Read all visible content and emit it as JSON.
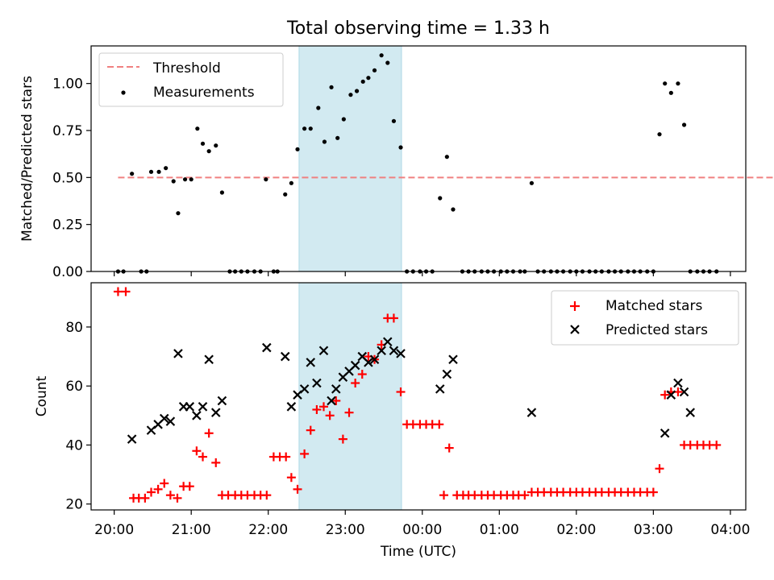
{
  "figure_title": "Total observing time = 1.33 h",
  "xlabel": "Time (UTC)",
  "chart_data": [
    {
      "type": "scatter",
      "panel": "top",
      "ylabel": "Matched/Predicted stars",
      "ylim": [
        0,
        1.2
      ],
      "yticks": [
        0,
        0.25,
        0.5,
        0.75,
        1.0
      ],
      "ytick_labels": [
        "0.00",
        "0.25",
        "0.50",
        "0.75",
        "1.00"
      ],
      "xlim": [
        "19:42",
        "04:12"
      ],
      "x_unit": "time of day (UTC), hours past 00:00 of the first night; values > 24 are after midnight",
      "xticks": [
        20,
        21,
        22,
        23,
        24,
        25,
        26,
        27,
        28
      ],
      "xtick_labels": [
        "20:00",
        "21:00",
        "22:00",
        "23:00",
        "00:00",
        "01:00",
        "02:00",
        "03:00",
        "04:00"
      ],
      "shaded_region": {
        "x_start": 22.4,
        "x_end": 23.73,
        "color": "#add8e6"
      },
      "legend": {
        "position": "upper left"
      },
      "threshold": {
        "name": "Threshold",
        "y": 0.5,
        "x_range": [
          20.05,
          28.85
        ],
        "color": "#f08080",
        "style": "dashed"
      },
      "series": [
        {
          "name": "Measurements",
          "color": "#000000",
          "marker": "dot",
          "x": [
            20.05,
            20.12,
            20.35,
            20.42,
            20.23,
            20.48,
            20.58,
            20.67,
            20.77,
            20.83,
            20.92,
            21.0,
            21.08,
            21.15,
            21.23,
            21.32,
            21.4,
            21.5,
            21.57,
            21.65,
            21.73,
            21.82,
            21.9,
            21.97,
            22.07,
            22.12,
            22.22,
            22.3,
            22.38,
            22.47,
            22.55,
            22.65,
            22.73,
            22.82,
            22.9,
            22.98,
            23.07,
            23.15,
            23.23,
            23.3,
            23.38,
            23.47,
            23.55,
            23.63,
            23.72,
            23.8,
            23.88,
            23.97,
            24.05,
            24.13,
            24.23,
            24.32,
            24.4,
            24.52,
            24.6,
            24.68,
            24.77,
            24.85,
            24.93,
            25.02,
            25.1,
            25.18,
            25.27,
            25.33,
            25.42,
            25.5,
            25.58,
            25.67,
            25.75,
            25.83,
            25.92,
            26.0,
            26.08,
            26.17,
            26.25,
            26.33,
            26.42,
            26.5,
            26.58,
            26.67,
            26.75,
            26.83,
            26.92,
            27.0,
            27.08,
            27.15,
            27.23,
            27.32,
            27.4,
            27.48,
            27.57,
            27.65,
            27.73,
            27.82
          ],
          "y": [
            0,
            0,
            0,
            0,
            0.52,
            0.53,
            0.53,
            0.55,
            0.48,
            0.31,
            0.49,
            0.49,
            0.76,
            0.68,
            0.64,
            0.67,
            0.42,
            0,
            0,
            0,
            0,
            0,
            0,
            0.49,
            0,
            0,
            0.41,
            0.47,
            0.65,
            0.76,
            0.76,
            0.87,
            0.69,
            0.98,
            0.71,
            0.81,
            0.94,
            0.96,
            1.01,
            1.03,
            1.07,
            1.15,
            1.11,
            0.8,
            0.66,
            0,
            0,
            0,
            0,
            0,
            0.39,
            0.61,
            0.33,
            0,
            0,
            0,
            0,
            0,
            0,
            0,
            0,
            0,
            0,
            0,
            0.47,
            0,
            0,
            0,
            0,
            0,
            0,
            0,
            0,
            0,
            0,
            0,
            0,
            0,
            0,
            0,
            0,
            0,
            0,
            0,
            0.73,
            1.0,
            0.95,
            1.0,
            0.78,
            0,
            0,
            0,
            0,
            0
          ]
        }
      ]
    },
    {
      "type": "scatter",
      "panel": "bottom",
      "ylabel": "Count",
      "ylim": [
        18,
        95
      ],
      "yticks": [
        20,
        40,
        60,
        80
      ],
      "ytick_labels": [
        "20",
        "40",
        "60",
        "80"
      ],
      "xlim": [
        "19:42",
        "04:12"
      ],
      "x_unit": "time of day (UTC), hours past 00:00 of the first night; values > 24 are after midnight",
      "xticks": [
        20,
        21,
        22,
        23,
        24,
        25,
        26,
        27,
        28
      ],
      "xtick_labels": [
        "20:00",
        "21:00",
        "22:00",
        "23:00",
        "00:00",
        "01:00",
        "02:00",
        "03:00",
        "04:00"
      ],
      "shaded_region": {
        "x_start": 22.4,
        "x_end": 23.73,
        "color": "#add8e6"
      },
      "legend": {
        "position": "upper right"
      },
      "series": [
        {
          "name": "Matched stars",
          "color": "#ff0000",
          "marker": "plus",
          "x": [
            20.05,
            20.15,
            20.25,
            20.32,
            20.4,
            20.48,
            20.57,
            20.65,
            20.73,
            20.82,
            20.9,
            20.98,
            21.07,
            21.15,
            21.23,
            21.32,
            21.4,
            21.48,
            21.57,
            21.65,
            21.73,
            21.82,
            21.9,
            21.98,
            22.07,
            22.15,
            22.23,
            22.3,
            22.38,
            22.47,
            22.55,
            22.63,
            22.72,
            22.8,
            22.88,
            22.97,
            23.05,
            23.13,
            23.22,
            23.3,
            23.38,
            23.47,
            23.55,
            23.63,
            23.72,
            23.8,
            23.88,
            23.97,
            24.05,
            24.13,
            24.22,
            24.28,
            24.35,
            24.45,
            24.53,
            24.6,
            24.68,
            24.77,
            24.85,
            24.93,
            25.02,
            25.1,
            25.18,
            25.25,
            25.33,
            25.42,
            25.5,
            25.58,
            25.67,
            25.75,
            25.83,
            25.92,
            26.0,
            26.08,
            26.17,
            26.25,
            26.33,
            26.42,
            26.5,
            26.58,
            26.67,
            26.75,
            26.83,
            26.92,
            27.0,
            27.08,
            27.15,
            27.23,
            27.32,
            27.4,
            27.48,
            27.57,
            27.65,
            27.73,
            27.82
          ],
          "y": [
            92,
            92,
            22,
            22,
            22,
            24,
            25,
            27,
            23,
            22,
            26,
            26,
            38,
            36,
            44,
            34,
            23,
            23,
            23,
            23,
            23,
            23,
            23,
            23,
            36,
            36,
            36,
            29,
            25,
            37,
            45,
            52,
            53,
            50,
            55,
            42,
            51,
            61,
            64,
            70,
            69,
            74,
            83,
            83,
            58,
            47,
            47,
            47,
            47,
            47,
            47,
            23,
            39,
            23,
            23,
            23,
            23,
            23,
            23,
            23,
            23,
            23,
            23,
            23,
            23,
            24,
            24,
            24,
            24,
            24,
            24,
            24,
            24,
            24,
            24,
            24,
            24,
            24,
            24,
            24,
            24,
            24,
            24,
            24,
            24,
            32,
            57,
            58,
            58,
            40,
            40,
            40,
            40,
            40,
            40
          ]
        },
        {
          "name": "Predicted stars",
          "color": "#000000",
          "marker": "x",
          "x": [
            20.23,
            20.48,
            20.57,
            20.65,
            20.73,
            20.83,
            20.9,
            20.98,
            21.07,
            21.15,
            21.23,
            21.32,
            21.4,
            21.98,
            22.22,
            22.3,
            22.38,
            22.47,
            22.55,
            22.63,
            22.72,
            22.82,
            22.88,
            22.97,
            23.05,
            23.13,
            23.22,
            23.3,
            23.38,
            23.47,
            23.55,
            23.63,
            23.72,
            24.23,
            24.32,
            24.4,
            25.42,
            27.15,
            27.23,
            27.32,
            27.4,
            27.48
          ],
          "y": [
            42,
            45,
            47,
            49,
            48,
            71,
            53,
            53,
            50,
            53,
            69,
            51,
            55,
            73,
            70,
            53,
            57,
            59,
            68,
            61,
            72,
            55,
            59,
            63,
            65,
            67,
            70,
            68,
            69,
            72,
            75,
            72,
            71,
            59,
            64,
            69,
            51,
            44,
            57,
            61,
            58,
            51
          ]
        }
      ]
    }
  ]
}
